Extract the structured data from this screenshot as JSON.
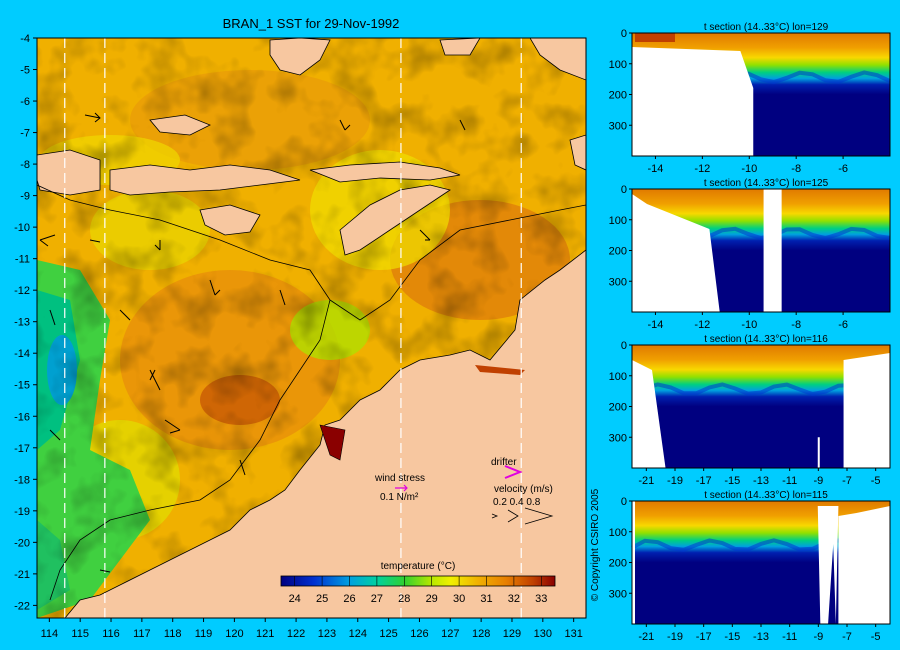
{
  "main_map": {
    "title": "BRAN_1 SST for 29-Nov-1992",
    "x_ticks": [
      114,
      115,
      116,
      117,
      118,
      119,
      120,
      121,
      122,
      123,
      124,
      125,
      126,
      127,
      128,
      129,
      130,
      131
    ],
    "y_ticks": [
      -4,
      -5,
      -6,
      -7,
      -8,
      -9,
      -10,
      -11,
      -12,
      -13,
      -14,
      -15,
      -16,
      -17,
      -18,
      -19,
      -20,
      -21,
      -22
    ],
    "xlim": [
      113.6,
      131.4
    ],
    "ylim": [
      -22.4,
      -4
    ],
    "section_lines_lon": [
      114.5,
      115.8,
      125.4,
      129.3
    ]
  },
  "legend": {
    "wind_stress_label": "wind stress",
    "wind_stress_value": "0.1 N/m²",
    "drifter_label": "drifter",
    "velocity_label": "velocity (m/s)",
    "velocity_values": "0.2 0.4 0.8",
    "colorbar_label": "temperature (°C)",
    "colorbar_ticks": [
      24,
      25,
      26,
      27,
      28,
      29,
      30,
      31,
      32,
      33
    ],
    "colorbar_range": [
      23.5,
      33.5
    ]
  },
  "copyright": "© Copyright CSIRO 2005",
  "chart_data": [
    {
      "type": "heatmap",
      "title": "BRAN_1 SST for 29-Nov-1992",
      "xlim": [
        113.6,
        131.4
      ],
      "ylim": [
        -22.4,
        -4
      ],
      "colorbar": {
        "label": "temperature (°C)",
        "min": 23.5,
        "max": 33.5,
        "ticks": [
          24,
          25,
          26,
          27,
          28,
          29,
          30,
          31,
          32,
          33
        ]
      }
    },
    {
      "type": "heatmap",
      "title": "t section (14..33°C) lon=129",
      "xlim": [
        -15,
        -4
      ],
      "ylim": [
        400,
        0
      ],
      "x_ticks": [
        -14,
        -12,
        -10,
        -8,
        -6
      ],
      "y_ticks": [
        0,
        100,
        200,
        300
      ]
    },
    {
      "type": "heatmap",
      "title": "t section (14..33°C) lon=125",
      "xlim": [
        -15,
        -4
      ],
      "ylim": [
        400,
        0
      ],
      "x_ticks": [
        -14,
        -12,
        -10,
        -8,
        -6
      ],
      "y_ticks": [
        0,
        100,
        200,
        300
      ]
    },
    {
      "type": "heatmap",
      "title": "t section (14..33°C) lon=116",
      "xlim": [
        -22,
        -4
      ],
      "ylim": [
        400,
        0
      ],
      "x_ticks": [
        -21,
        -19,
        -17,
        -15,
        -13,
        -11,
        -9,
        -7,
        -5
      ],
      "y_ticks": [
        0,
        100,
        200,
        300
      ]
    },
    {
      "type": "heatmap",
      "title": "t section (14..33°C) lon=115",
      "xlim": [
        -22,
        -4
      ],
      "ylim": [
        400,
        0
      ],
      "x_ticks": [
        -21,
        -19,
        -17,
        -15,
        -13,
        -11,
        -9,
        -7,
        -5
      ],
      "y_ticks": [
        0,
        100,
        200,
        300
      ]
    }
  ]
}
